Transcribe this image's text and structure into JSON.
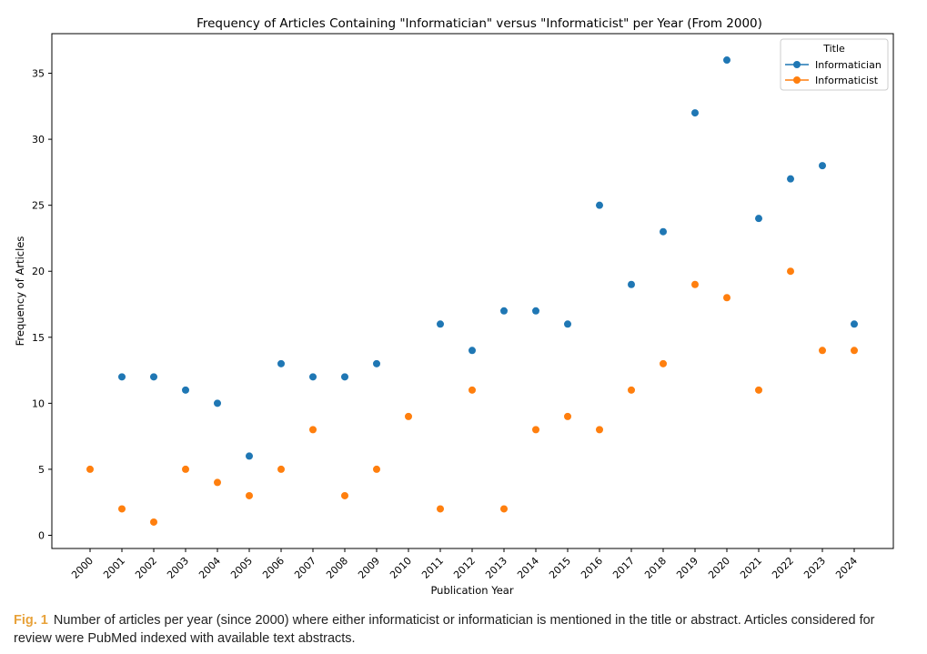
{
  "chart_data": {
    "type": "scatter",
    "title": "Frequency of Articles Containing \"Informatician\" versus \"Informaticist\" per Year (From 2000)",
    "xlabel": "Publication Year",
    "ylabel": "Frequency of Articles",
    "x": [
      "2000",
      "2001",
      "2002",
      "2003",
      "2004",
      "2005",
      "2006",
      "2007",
      "2008",
      "2009",
      "2010",
      "2011",
      "2012",
      "2013",
      "2014",
      "2015",
      "2016",
      "2017",
      "2018",
      "2019",
      "2020",
      "2021",
      "2022",
      "2023",
      "2024"
    ],
    "yticks": [
      0,
      5,
      10,
      15,
      20,
      25,
      30,
      35
    ],
    "ylim": [
      -1,
      38
    ],
    "grid": false,
    "legend": {
      "title": "Title",
      "placement": "top-right"
    },
    "series": [
      {
        "name": "Informatician",
        "color": "#1f77b4",
        "points": [
          {
            "x": "2001",
            "y": 12
          },
          {
            "x": "2002",
            "y": 12
          },
          {
            "x": "2003",
            "y": 11
          },
          {
            "x": "2004",
            "y": 10
          },
          {
            "x": "2005",
            "y": 6
          },
          {
            "x": "2006",
            "y": 13
          },
          {
            "x": "2007",
            "y": 12
          },
          {
            "x": "2008",
            "y": 12
          },
          {
            "x": "2009",
            "y": 13
          },
          {
            "x": "2011",
            "y": 16
          },
          {
            "x": "2012",
            "y": 14
          },
          {
            "x": "2013",
            "y": 17
          },
          {
            "x": "2014",
            "y": 17
          },
          {
            "x": "2015",
            "y": 16
          },
          {
            "x": "2016",
            "y": 25
          },
          {
            "x": "2017",
            "y": 19
          },
          {
            "x": "2018",
            "y": 23
          },
          {
            "x": "2019",
            "y": 32
          },
          {
            "x": "2020",
            "y": 36
          },
          {
            "x": "2021",
            "y": 24
          },
          {
            "x": "2022",
            "y": 27
          },
          {
            "x": "2023",
            "y": 28
          },
          {
            "x": "2024",
            "y": 16
          }
        ]
      },
      {
        "name": "Informaticist",
        "color": "#ff7f0e",
        "points": [
          {
            "x": "2000",
            "y": 5
          },
          {
            "x": "2001",
            "y": 2
          },
          {
            "x": "2002",
            "y": 1
          },
          {
            "x": "2003",
            "y": 5
          },
          {
            "x": "2004",
            "y": 4
          },
          {
            "x": "2005",
            "y": 3
          },
          {
            "x": "2006",
            "y": 5
          },
          {
            "x": "2007",
            "y": 8
          },
          {
            "x": "2008",
            "y": 3
          },
          {
            "x": "2009",
            "y": 5
          },
          {
            "x": "2010",
            "y": 9
          },
          {
            "x": "2011",
            "y": 2
          },
          {
            "x": "2012",
            "y": 11
          },
          {
            "x": "2013",
            "y": 2
          },
          {
            "x": "2014",
            "y": 8
          },
          {
            "x": "2015",
            "y": 9
          },
          {
            "x": "2016",
            "y": 8
          },
          {
            "x": "2017",
            "y": 11
          },
          {
            "x": "2018",
            "y": 13
          },
          {
            "x": "2019",
            "y": 19
          },
          {
            "x": "2020",
            "y": 18
          },
          {
            "x": "2021",
            "y": 11
          },
          {
            "x": "2022",
            "y": 20
          },
          {
            "x": "2023",
            "y": 14
          },
          {
            "x": "2024",
            "y": 14
          }
        ]
      }
    ]
  },
  "caption": {
    "label": "Fig. 1",
    "text": "Number of articles per year (since 2000) where either informaticist or informatician is mentioned in the title or abstract. Articles considered for review were PubMed indexed with available text abstracts.",
    "label_color": "#e8a23a"
  }
}
